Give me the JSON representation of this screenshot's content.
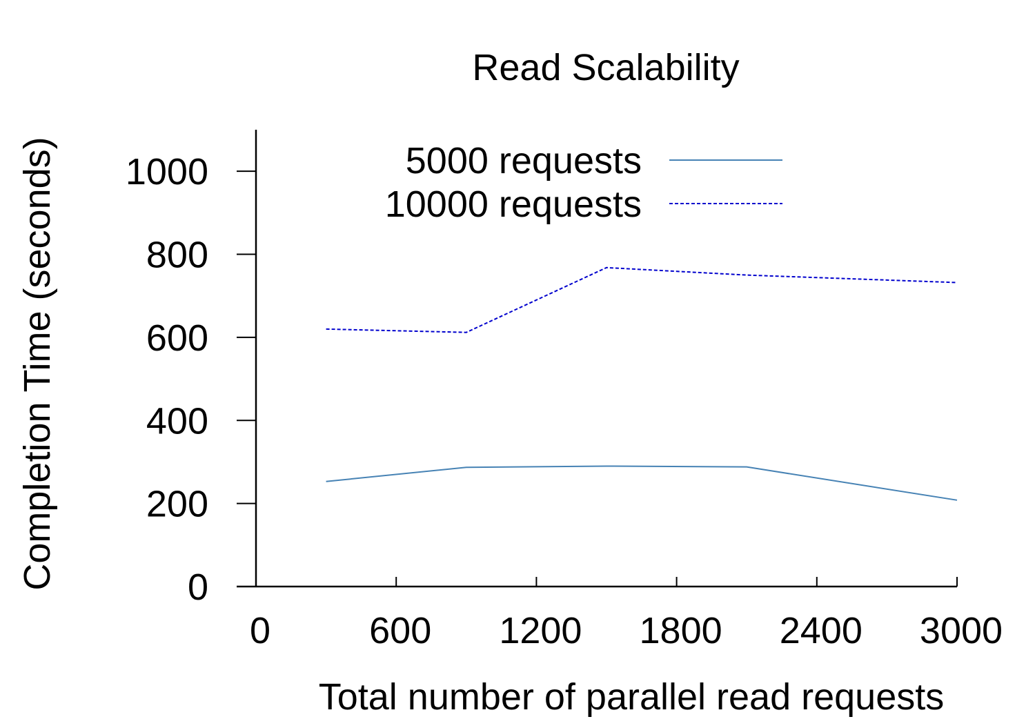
{
  "chart_data": {
    "type": "line",
    "title": "Read Scalability",
    "xlabel": "Total number of parallel read requests",
    "ylabel": "Completion Time (seconds)",
    "xlim": [
      0,
      3000
    ],
    "ylim": [
      0,
      1100
    ],
    "xticks": [
      0,
      600,
      1200,
      1800,
      2400,
      3000
    ],
    "yticks": [
      0,
      200,
      400,
      600,
      800,
      1000
    ],
    "grid": false,
    "legend_position": "top-center",
    "series": [
      {
        "name": "5000 requests",
        "color": "#4682b4",
        "dash": "solid",
        "x": [
          300,
          900,
          1500,
          2100,
          3000
        ],
        "y": [
          253,
          287,
          290,
          288,
          208
        ]
      },
      {
        "name": "10000 requests",
        "color": "#0000cd",
        "dash": "dashed",
        "x": [
          300,
          900,
          1500,
          2100,
          3000
        ],
        "y": [
          620,
          612,
          768,
          750,
          732
        ]
      }
    ]
  }
}
